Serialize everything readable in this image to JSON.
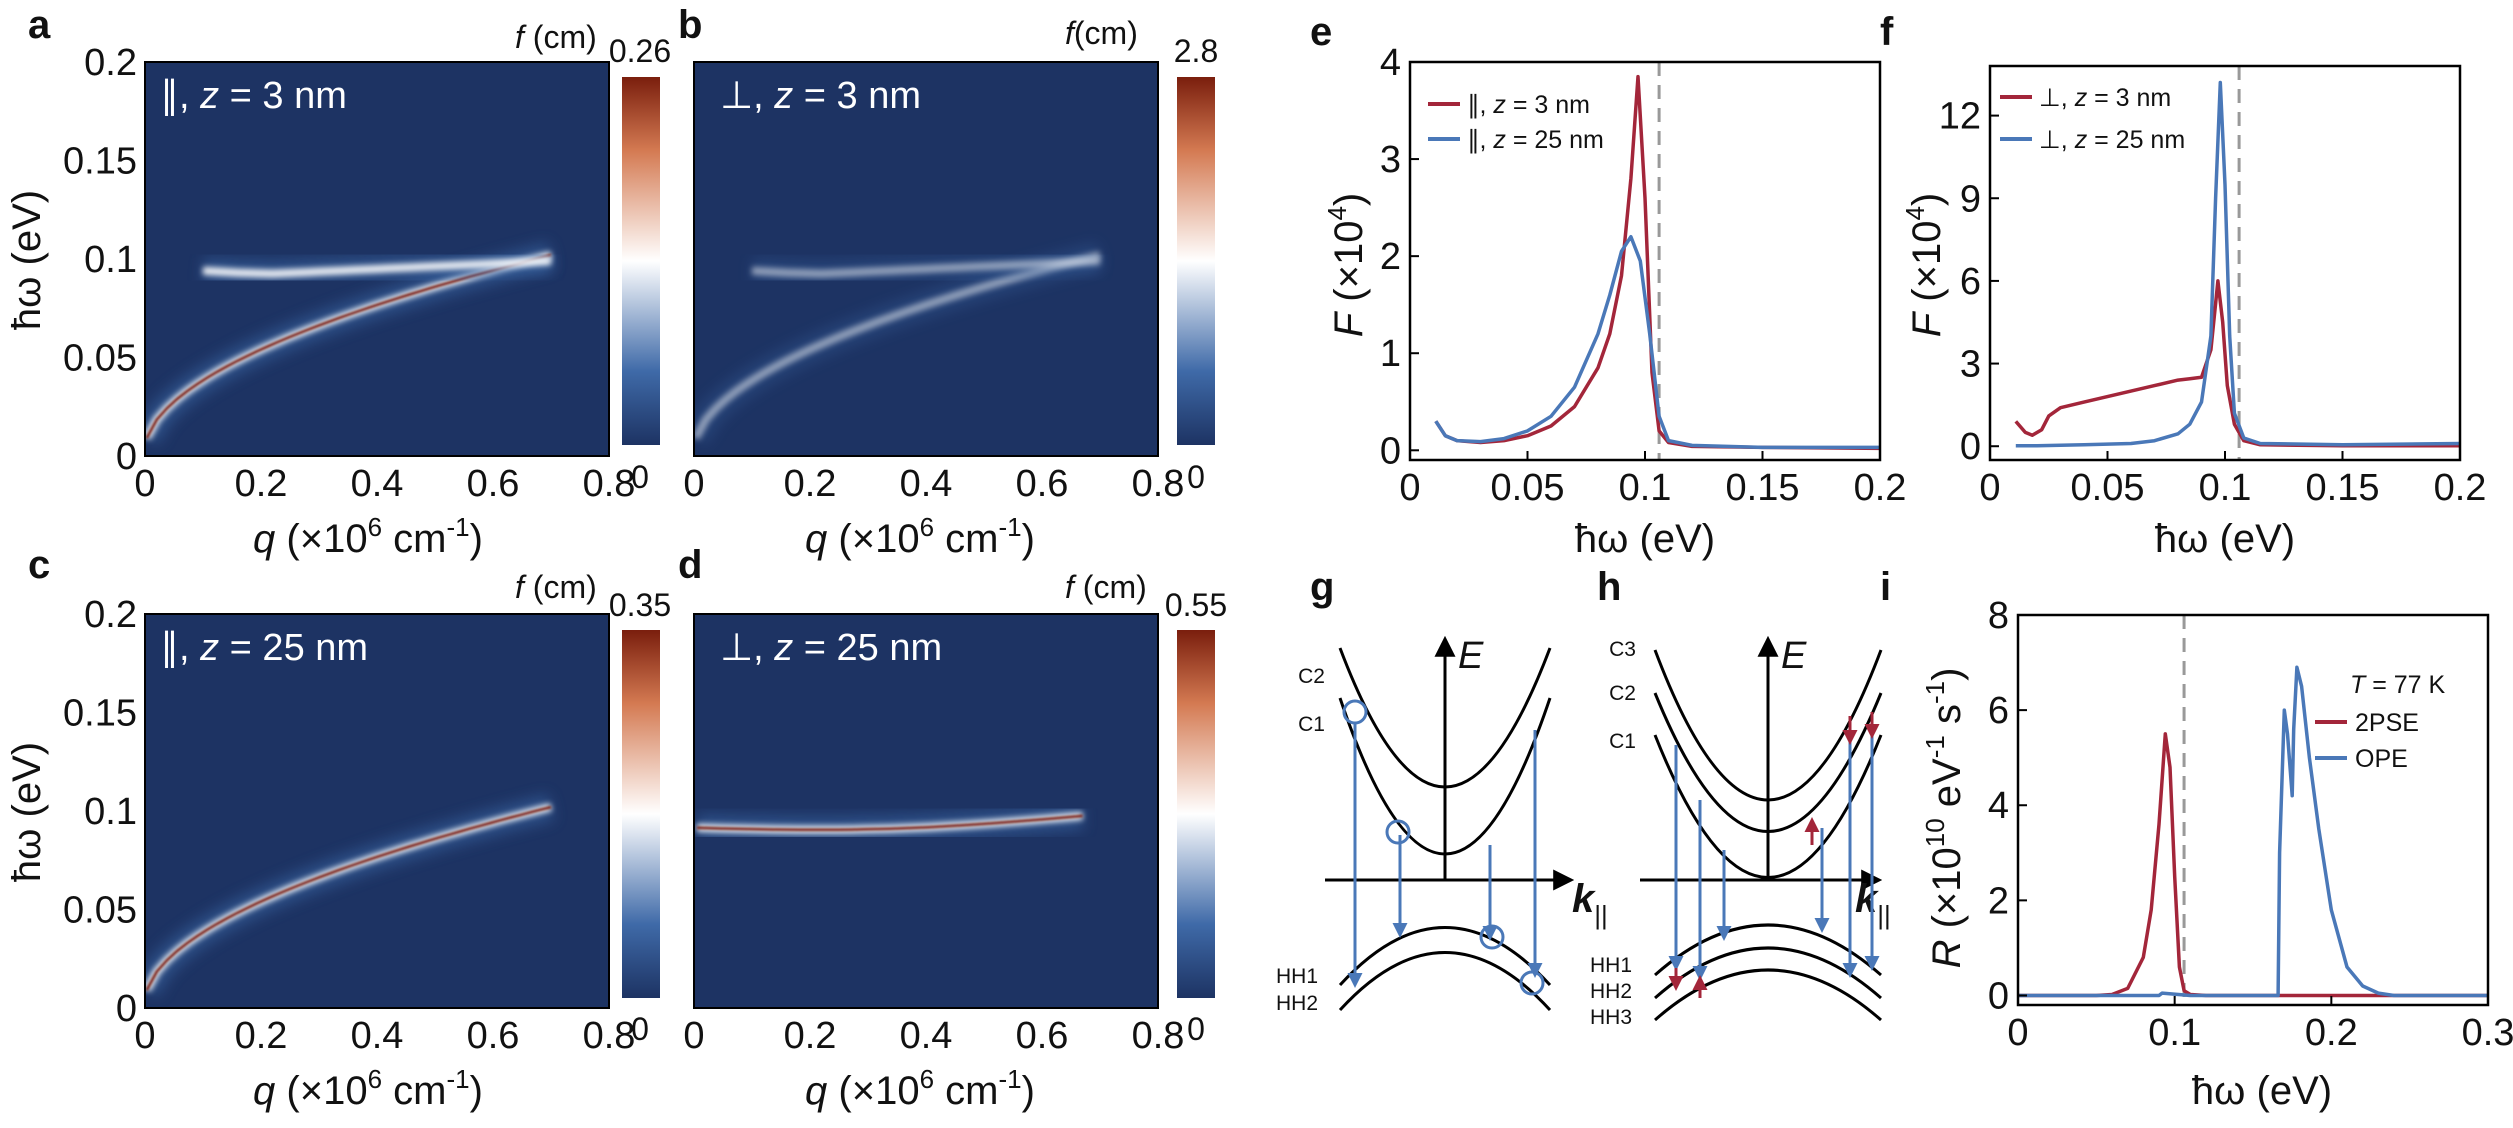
{
  "colors": {
    "heatmap_bg": "#1d3363",
    "heatmap_low": "#3a67a6",
    "heatmap_mid": "#ffffff",
    "heatmap_high": "#b34c20",
    "heatmap_peak": "#7a1e0d",
    "red": "#a3263a",
    "blue": "#4a78b8",
    "dashed": "#999999",
    "band_line": "#000000",
    "trans_blue": "#4a78b8",
    "trans_red": "#a3263a"
  },
  "chart_data": [
    {
      "id": "a",
      "type": "heatmap",
      "panel_label": "a",
      "annotation": {
        "sym": "∥",
        "rest": ", ",
        "z": "z",
        "val": " = 3 nm"
      },
      "colorbar": {
        "label_f": "f",
        "label_unit": " (cm)",
        "max": "0.26",
        "min": "0"
      },
      "xlabel": {
        "q": "q",
        "rest": " (×10",
        "exp": "6",
        "unit": " cm",
        "exp2": "-1",
        "close": ")"
      },
      "ylabel": "ħω (eV)",
      "xlim": [
        0,
        0.8
      ],
      "ylim": [
        0,
        0.2
      ],
      "xticks": [
        "0",
        "0.2",
        "0.4",
        "0.6",
        "0.8"
      ],
      "yticks": [
        "0",
        "0.05",
        "0.1",
        "0.15",
        "0.2"
      ],
      "branches": [
        "lower",
        "upper_flat"
      ],
      "intensity": 1.0
    },
    {
      "id": "b",
      "type": "heatmap",
      "panel_label": "b",
      "annotation": {
        "sym": "⊥",
        "rest": ", ",
        "z": "z",
        "val": " = 3 nm"
      },
      "colorbar": {
        "label_f": "f",
        "label_unit": "(cm)",
        "max": "2.8",
        "min": "0"
      },
      "xlabel": {
        "q": "q",
        "rest": " (×10",
        "exp": "6",
        "unit": " cm",
        "exp2": "-1",
        "close": ")"
      },
      "xlim": [
        0,
        0.8
      ],
      "ylim": [
        0,
        0.2
      ],
      "xticks": [
        "0",
        "0.2",
        "0.4",
        "0.6",
        "0.8"
      ],
      "branches": [
        "lower",
        "upper_flat"
      ],
      "intensity": 0.55
    },
    {
      "id": "c",
      "type": "heatmap",
      "panel_label": "c",
      "annotation": {
        "sym": "∥",
        "rest": ", ",
        "z": "z",
        "val": " = 25 nm"
      },
      "colorbar": {
        "label_f": "f",
        "label_unit": " (cm)",
        "max": "0.35",
        "min": "0"
      },
      "xlabel": {
        "q": "q",
        "rest": " (×10",
        "exp": "6",
        "unit": " cm",
        "exp2": "-1",
        "close": ")"
      },
      "ylabel": "ħω (eV)",
      "xlim": [
        0,
        0.8
      ],
      "ylim": [
        0,
        0.2
      ],
      "xticks": [
        "0",
        "0.2",
        "0.4",
        "0.6",
        "0.8"
      ],
      "yticks": [
        "0",
        "0.05",
        "0.1",
        "0.15",
        "0.2"
      ],
      "branches": [
        "lower"
      ],
      "intensity": 1.0
    },
    {
      "id": "d",
      "type": "heatmap",
      "panel_label": "d",
      "annotation": {
        "sym": "⊥",
        "rest": ", ",
        "z": "z",
        "val": " = 25 nm"
      },
      "colorbar": {
        "label_f": "f",
        "label_unit": " (cm)",
        "max": "0.55",
        "min": "0"
      },
      "xlabel": {
        "q": "q",
        "rest": " (×10",
        "exp": "6",
        "unit": " cm",
        "exp2": "-1",
        "close": ")"
      },
      "xlim": [
        0,
        0.8
      ],
      "ylim": [
        0,
        0.2
      ],
      "xticks": [
        "0",
        "0.2",
        "0.4",
        "0.6",
        "0.8"
      ],
      "branches": [
        "flat"
      ],
      "intensity": 1.0
    },
    {
      "id": "e",
      "type": "line",
      "panel_label": "e",
      "xlabel": "ħω (eV)",
      "ylabel_F": "F",
      "ylabel_rest": " (×10",
      "ylabel_exp": "4",
      "ylabel_close": ")",
      "xlim": [
        0,
        0.2
      ],
      "ylim": [
        -0.1,
        4.0
      ],
      "xticks": [
        0,
        0.05,
        0.1,
        0.15,
        0.2
      ],
      "xtick_labels": [
        "0",
        "0.05",
        "0.1",
        "0.15",
        "0.2"
      ],
      "yticks": [
        0,
        1,
        2,
        3,
        4
      ],
      "ytick_labels": [
        "0",
        "1",
        "2",
        "3",
        "4"
      ],
      "dashed_x": 0.106,
      "series": [
        {
          "name_sym": "∥",
          "name_rest": ", ",
          "name_z": "z",
          "name_val": " = 3 nm",
          "color": "red",
          "x": [
            0.011,
            0.015,
            0.02,
            0.03,
            0.04,
            0.05,
            0.06,
            0.07,
            0.08,
            0.085,
            0.09,
            0.094,
            0.097,
            0.1,
            0.103,
            0.106,
            0.11,
            0.12,
            0.15,
            0.2
          ],
          "y": [
            0.3,
            0.15,
            0.1,
            0.08,
            0.1,
            0.15,
            0.25,
            0.45,
            0.85,
            1.2,
            1.8,
            2.8,
            3.85,
            2.6,
            0.8,
            0.2,
            0.08,
            0.04,
            0.03,
            0.02
          ]
        },
        {
          "name_sym": "∥",
          "name_rest": ", ",
          "name_z": "z",
          "name_val": " = 25 nm",
          "color": "blue",
          "x": [
            0.011,
            0.015,
            0.02,
            0.03,
            0.04,
            0.05,
            0.06,
            0.07,
            0.08,
            0.085,
            0.09,
            0.094,
            0.098,
            0.102,
            0.106,
            0.11,
            0.12,
            0.15,
            0.2
          ],
          "y": [
            0.3,
            0.15,
            0.1,
            0.09,
            0.12,
            0.2,
            0.35,
            0.65,
            1.2,
            1.6,
            2.05,
            2.2,
            1.95,
            1.2,
            0.35,
            0.1,
            0.05,
            0.03,
            0.03
          ]
        }
      ]
    },
    {
      "id": "f",
      "type": "line",
      "panel_label": "f",
      "xlabel": "ħω (eV)",
      "ylabel_F": "F",
      "ylabel_rest": " (×10",
      "ylabel_exp": "4",
      "ylabel_close": ")",
      "xlim": [
        0,
        0.2
      ],
      "ylim": [
        -0.5,
        13.8
      ],
      "xticks": [
        0,
        0.05,
        0.1,
        0.15,
        0.2
      ],
      "xtick_labels": [
        "0",
        "0.05",
        "0.1",
        "0.15",
        "0.2"
      ],
      "yticks": [
        0,
        3,
        6,
        9,
        12
      ],
      "ytick_labels": [
        "0",
        "3",
        "6",
        "9",
        "12"
      ],
      "dashed_x": 0.106,
      "series": [
        {
          "name_sym": "⊥",
          "name_rest": ", ",
          "name_z": "z",
          "name_val": " = 3 nm",
          "color": "red",
          "x": [
            0.011,
            0.015,
            0.018,
            0.022,
            0.025,
            0.03,
            0.04,
            0.05,
            0.06,
            0.07,
            0.08,
            0.085,
            0.09,
            0.094,
            0.097,
            0.099,
            0.101,
            0.104,
            0.108,
            0.115,
            0.15,
            0.2
          ],
          "y": [
            0.9,
            0.5,
            0.4,
            0.6,
            1.1,
            1.4,
            1.6,
            1.8,
            2.0,
            2.2,
            2.4,
            2.45,
            2.5,
            3.5,
            6.0,
            4.5,
            2.2,
            0.8,
            0.2,
            0.05,
            0.02,
            0.02
          ]
        },
        {
          "name_sym": "⊥",
          "name_rest": ", ",
          "name_z": "z",
          "name_val": " = 25 nm",
          "color": "blue",
          "x": [
            0.011,
            0.02,
            0.04,
            0.06,
            0.07,
            0.08,
            0.085,
            0.09,
            0.094,
            0.096,
            0.098,
            0.1,
            0.102,
            0.104,
            0.108,
            0.115,
            0.15,
            0.2
          ],
          "y": [
            0.02,
            0.02,
            0.05,
            0.1,
            0.2,
            0.45,
            0.8,
            1.6,
            4.0,
            9.0,
            13.2,
            9.5,
            4.0,
            1.2,
            0.3,
            0.1,
            0.05,
            0.1
          ]
        }
      ]
    },
    {
      "id": "i",
      "type": "line",
      "panel_label": "i",
      "xlabel": "ħω (eV)",
      "ylabel_R": "R",
      "ylabel_rest": " (×10",
      "ylabel_exp": "10",
      "ylabel_unit": " eV",
      "ylabel_exp2": "-1",
      "ylabel_s": " s",
      "ylabel_exp3": "-1",
      "ylabel_close": ")",
      "xlim": [
        0,
        0.3
      ],
      "ylim": [
        -0.2,
        8.0
      ],
      "xticks": [
        0,
        0.1,
        0.2,
        0.3
      ],
      "xtick_labels": [
        "0",
        "0.1",
        "0.2",
        "0.3"
      ],
      "yticks": [
        0,
        2,
        4,
        6,
        8
      ],
      "ytick_labels": [
        "0",
        "2",
        "4",
        "6",
        "8"
      ],
      "dashed_x": 0.106,
      "legend_title_T": "T",
      "legend_title_rest": " = 77 K",
      "series": [
        {
          "name": "2PSE",
          "color": "red",
          "x": [
            0,
            0.05,
            0.06,
            0.07,
            0.08,
            0.085,
            0.09,
            0.094,
            0.097,
            0.1,
            0.103,
            0.106,
            0.11,
            0.12,
            0.3
          ],
          "y": [
            0,
            0,
            0.02,
            0.15,
            0.8,
            1.8,
            3.6,
            5.5,
            4.8,
            2.5,
            0.6,
            0.1,
            0.02,
            0,
            0
          ]
        },
        {
          "name": "OPE",
          "color": "blue",
          "x": [
            0,
            0.09,
            0.092,
            0.11,
            0.166,
            0.167,
            0.17,
            0.172,
            0.175,
            0.176,
            0.178,
            0.181,
            0.186,
            0.192,
            0.2,
            0.21,
            0.22,
            0.23,
            0.24,
            0.3
          ],
          "y": [
            0,
            0,
            0.05,
            0,
            0,
            3.0,
            6.0,
            5.5,
            4.2,
            5.6,
            6.9,
            6.5,
            5.0,
            3.5,
            1.8,
            0.6,
            0.2,
            0.05,
            0,
            0
          ]
        }
      ]
    }
  ],
  "band_g": {
    "panel_label": "g",
    "axis_E": "E",
    "axis_k": "k",
    "axis_k_sub": "||",
    "cond_labels": [
      "C2",
      "C1"
    ],
    "val_labels": [
      "HH1",
      "HH2"
    ]
  },
  "band_h": {
    "panel_label": "h",
    "axis_E": "E",
    "axis_k": "k",
    "axis_k_sub": "||",
    "cond_labels": [
      "C3",
      "C2",
      "C1"
    ],
    "val_labels": [
      "HH1",
      "HH2",
      "HH3"
    ]
  }
}
